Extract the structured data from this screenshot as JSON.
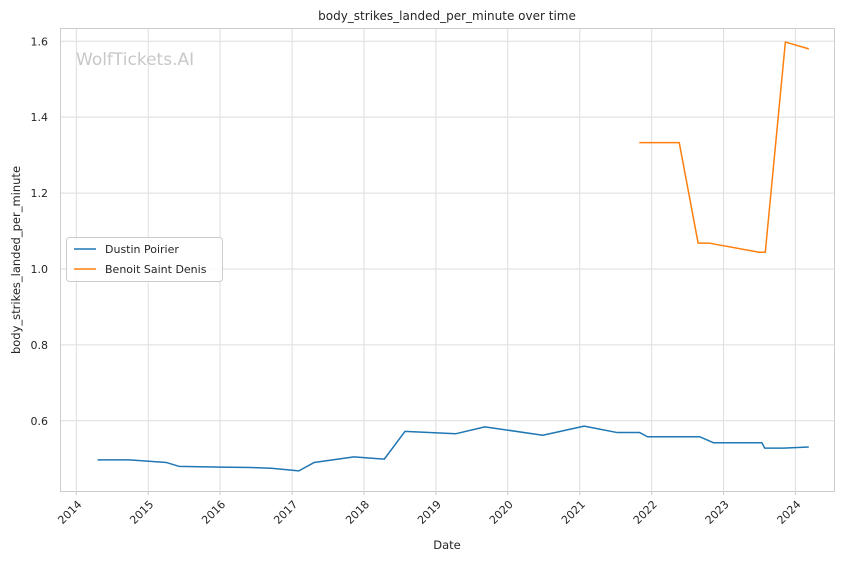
{
  "chart_data": {
    "type": "line",
    "title": "body_strikes_landed_per_minute over time",
    "xlabel": "Date",
    "ylabel": "body_strikes_landed_per_minute",
    "watermark": "WolfTickets.AI",
    "x_ticks": [
      "2014",
      "2015",
      "2016",
      "2017",
      "2018",
      "2019",
      "2020",
      "2021",
      "2022",
      "2023",
      "2024"
    ],
    "y_ticks": [
      "0.6",
      "0.8",
      "1.0",
      "1.2",
      "1.4",
      "1.6"
    ],
    "xlim": [
      "2013-10-10",
      "2024-07-15"
    ],
    "ylim": [
      0.415,
      1.635
    ],
    "grid": true,
    "legend_position": "center-left",
    "series": [
      {
        "name": "Dustin Poirier",
        "color": "#1f77b4",
        "points": [
          [
            "2014-04-19",
            0.497
          ],
          [
            "2014-09-27",
            0.497
          ],
          [
            "2015-04-04",
            0.49
          ],
          [
            "2015-06-06",
            0.48
          ],
          [
            "2016-01-02",
            0.478
          ],
          [
            "2016-06-04",
            0.477
          ],
          [
            "2016-09-17",
            0.475
          ],
          [
            "2017-02-04",
            0.468
          ],
          [
            "2017-04-22",
            0.49
          ],
          [
            "2017-11-11",
            0.505
          ],
          [
            "2018-04-14",
            0.499
          ],
          [
            "2018-07-28",
            0.572
          ],
          [
            "2019-04-13",
            0.566
          ],
          [
            "2019-09-07",
            0.584
          ],
          [
            "2020-06-27",
            0.562
          ],
          [
            "2021-01-23",
            0.586
          ],
          [
            "2021-07-10",
            0.569
          ],
          [
            "2021-11-01",
            0.569
          ],
          [
            "2021-12-11",
            0.558
          ],
          [
            "2022-09-01",
            0.558
          ],
          [
            "2022-11-12",
            0.542
          ],
          [
            "2023-07-15",
            0.542
          ],
          [
            "2023-07-29",
            0.528
          ],
          [
            "2023-11-01",
            0.528
          ],
          [
            "2024-03-09",
            0.531
          ]
        ]
      },
      {
        "name": "Benoit Saint Denis",
        "color": "#ff7f0e",
        "points": [
          [
            "2021-10-30",
            1.333
          ],
          [
            "2022-05-21",
            1.333
          ],
          [
            "2022-08-25",
            1.068
          ],
          [
            "2022-10-22",
            1.068
          ],
          [
            "2023-07-01",
            1.044
          ],
          [
            "2023-08-01",
            1.044
          ],
          [
            "2023-11-11",
            1.598
          ],
          [
            "2024-03-09",
            1.58
          ]
        ]
      }
    ]
  }
}
